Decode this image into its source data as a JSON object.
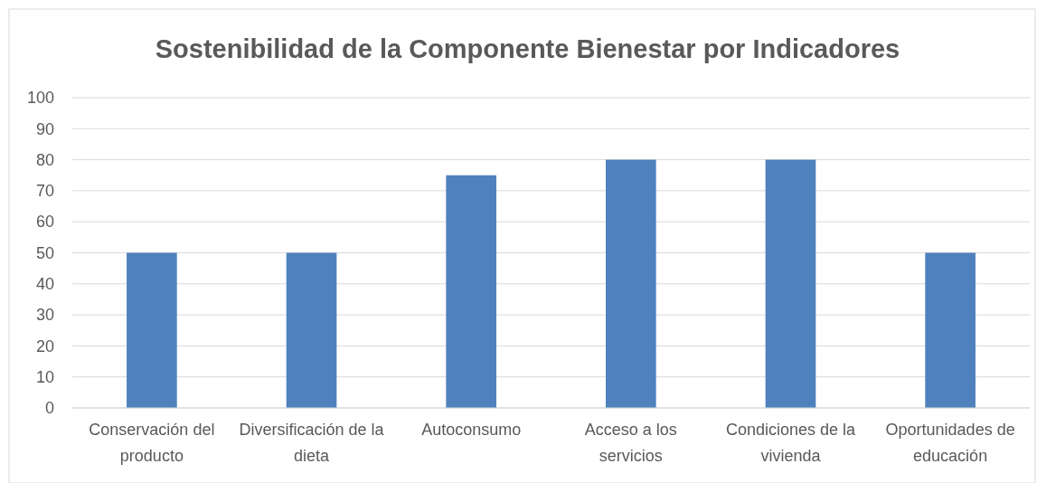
{
  "chart_data": {
    "type": "bar",
    "title": "Sostenibilidad de la Componente Bienestar por Indicadores",
    "categories": [
      "Conservación del producto",
      "Diversificación de la dieta",
      "Autoconsumo",
      "Acceso a los servicios",
      "Condiciones de la vivienda",
      "Oportunidades de educación"
    ],
    "values": [
      50,
      50,
      75,
      80,
      80,
      50
    ],
    "color": "#4f81bd",
    "ylim": [
      0,
      100
    ],
    "yticks": [
      0,
      10,
      20,
      30,
      40,
      50,
      60,
      70,
      80,
      90,
      100
    ],
    "grid": "y"
  }
}
